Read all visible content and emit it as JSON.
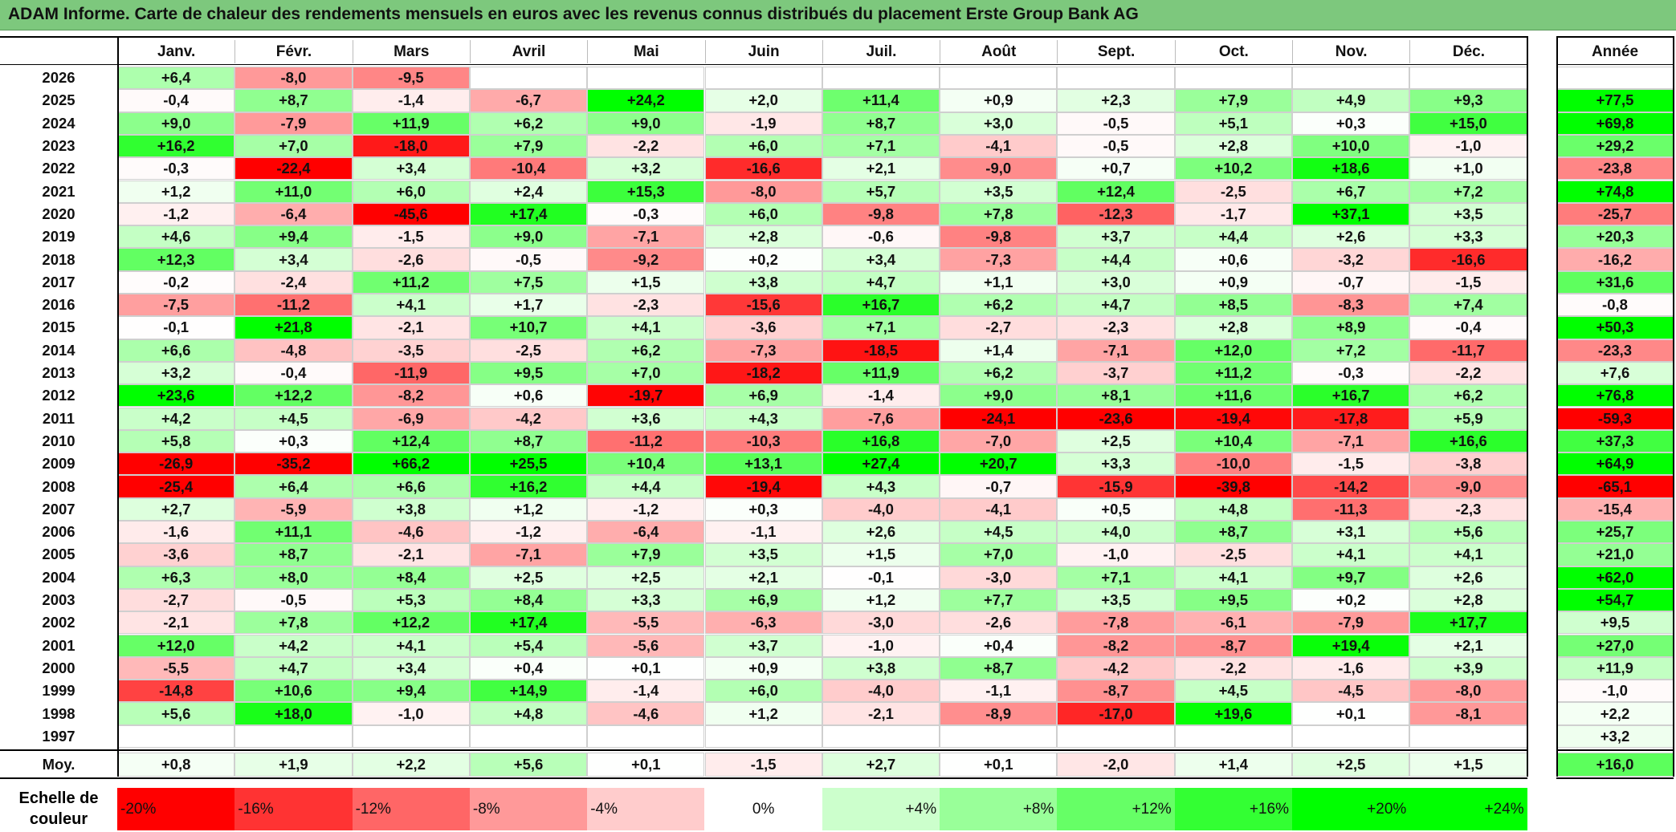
{
  "title": "ADAM Informe. Carte de chaleur des rendements mensuels en euros avec les revenus connus distribués du placement Erste Group Bank AG",
  "chart_data": {
    "type": "heatmap",
    "title": "ADAM Informe. Carte de chaleur des rendements mensuels en euros avec les revenus connus distribués du placement Erste Group Bank AG",
    "columns": [
      "Janv.",
      "Févr.",
      "Mars",
      "Avril",
      "Mai",
      "Juin",
      "Juil.",
      "Août",
      "Sept.",
      "Oct.",
      "Nov.",
      "Déc."
    ],
    "year_column_label": "Année",
    "rows": [
      {
        "year": "2026",
        "months": [
          "+6,4",
          "-8,0",
          "-9,5",
          "",
          "",
          "",
          "",
          "",
          "",
          "",
          "",
          ""
        ],
        "annual": ""
      },
      {
        "year": "2025",
        "months": [
          "-0,4",
          "+8,7",
          "-1,4",
          "-6,7",
          "+24,2",
          "+2,0",
          "+11,4",
          "+0,9",
          "+2,3",
          "+7,9",
          "+4,9",
          "+9,3"
        ],
        "annual": "+77,5"
      },
      {
        "year": "2024",
        "months": [
          "+9,0",
          "-7,9",
          "+11,9",
          "+6,2",
          "+9,0",
          "-1,9",
          "+8,7",
          "+3,0",
          "-0,5",
          "+5,1",
          "+0,3",
          "+15,0"
        ],
        "annual": "+69,8"
      },
      {
        "year": "2023",
        "months": [
          "+16,2",
          "+7,0",
          "-18,0",
          "+7,9",
          "-2,2",
          "+6,0",
          "+7,1",
          "-4,1",
          "-0,5",
          "+2,8",
          "+10,0",
          "-1,0"
        ],
        "annual": "+29,2"
      },
      {
        "year": "2022",
        "months": [
          "-0,3",
          "-22,4",
          "+3,4",
          "-10,4",
          "+3,2",
          "-16,6",
          "+2,1",
          "-9,0",
          "+0,7",
          "+10,2",
          "+18,6",
          "+1,0"
        ],
        "annual": "-23,8"
      },
      {
        "year": "2021",
        "months": [
          "+1,2",
          "+11,0",
          "+6,0",
          "+2,4",
          "+15,3",
          "-8,0",
          "+5,7",
          "+3,5",
          "+12,4",
          "-2,5",
          "+6,7",
          "+7,2"
        ],
        "annual": "+74,8"
      },
      {
        "year": "2020",
        "months": [
          "-1,2",
          "-6,4",
          "-45,6",
          "+17,4",
          "-0,3",
          "+6,0",
          "-9,8",
          "+7,8",
          "-12,3",
          "-1,7",
          "+37,1",
          "+3,5"
        ],
        "annual": "-25,7"
      },
      {
        "year": "2019",
        "months": [
          "+4,6",
          "+9,4",
          "-1,5",
          "+9,0",
          "-7,1",
          "+2,8",
          "-0,6",
          "-9,8",
          "+3,7",
          "+4,4",
          "+2,6",
          "+3,3"
        ],
        "annual": "+20,3"
      },
      {
        "year": "2018",
        "months": [
          "+12,3",
          "+3,4",
          "-2,6",
          "-0,5",
          "-9,2",
          "+0,2",
          "+3,4",
          "-7,3",
          "+4,4",
          "+0,6",
          "-3,2",
          "-16,6"
        ],
        "annual": "-16,2"
      },
      {
        "year": "2017",
        "months": [
          "-0,2",
          "-2,4",
          "+11,2",
          "+7,5",
          "+1,5",
          "+3,8",
          "+4,7",
          "+1,1",
          "+3,0",
          "+0,9",
          "-0,7",
          "-1,5"
        ],
        "annual": "+31,6"
      },
      {
        "year": "2016",
        "months": [
          "-7,5",
          "-11,2",
          "+4,1",
          "+1,7",
          "-2,3",
          "-15,6",
          "+16,7",
          "+6,2",
          "+4,7",
          "+8,5",
          "-8,3",
          "+7,4"
        ],
        "annual": "-0,8"
      },
      {
        "year": "2015",
        "months": [
          "-0,1",
          "+21,8",
          "-2,1",
          "+10,7",
          "+4,1",
          "-3,6",
          "+7,1",
          "-2,7",
          "-2,3",
          "+2,8",
          "+8,9",
          "-0,4"
        ],
        "annual": "+50,3"
      },
      {
        "year": "2014",
        "months": [
          "+6,6",
          "-4,8",
          "-3,5",
          "-2,5",
          "+6,2",
          "-7,3",
          "-18,5",
          "+1,4",
          "-7,1",
          "+12,0",
          "+7,2",
          "-11,7"
        ],
        "annual": "-23,3"
      },
      {
        "year": "2013",
        "months": [
          "+3,2",
          "-0,4",
          "-11,9",
          "+9,5",
          "+7,0",
          "-18,2",
          "+11,9",
          "+6,2",
          "-3,7",
          "+11,2",
          "-0,3",
          "-2,2"
        ],
        "annual": "+7,6"
      },
      {
        "year": "2012",
        "months": [
          "+23,6",
          "+12,2",
          "-8,2",
          "+0,6",
          "-19,7",
          "+6,9",
          "-1,4",
          "+9,0",
          "+8,1",
          "+11,6",
          "+16,7",
          "+6,2"
        ],
        "annual": "+76,8"
      },
      {
        "year": "2011",
        "months": [
          "+4,2",
          "+4,5",
          "-6,9",
          "-4,2",
          "+3,6",
          "+4,3",
          "-7,6",
          "-24,1",
          "-23,6",
          "-19,4",
          "-17,8",
          "+5,9"
        ],
        "annual": "-59,3"
      },
      {
        "year": "2010",
        "months": [
          "+5,8",
          "+0,3",
          "+12,4",
          "+8,7",
          "-11,2",
          "-10,3",
          "+16,8",
          "-7,0",
          "+2,5",
          "+10,4",
          "-7,1",
          "+16,6"
        ],
        "annual": "+37,3"
      },
      {
        "year": "2009",
        "months": [
          "-26,9",
          "-35,2",
          "+66,2",
          "+25,5",
          "+10,4",
          "+13,1",
          "+27,4",
          "+20,7",
          "+3,3",
          "-10,0",
          "-1,5",
          "-3,8"
        ],
        "annual": "+64,9"
      },
      {
        "year": "2008",
        "months": [
          "-25,4",
          "+6,4",
          "+6,6",
          "+16,2",
          "+4,4",
          "-19,4",
          "+4,3",
          "-0,7",
          "-15,9",
          "-39,8",
          "-14,2",
          "-9,0"
        ],
        "annual": "-65,1"
      },
      {
        "year": "2007",
        "months": [
          "+2,7",
          "-5,9",
          "+3,8",
          "+1,2",
          "-1,2",
          "+0,3",
          "-4,0",
          "-4,1",
          "+0,5",
          "+4,8",
          "-11,3",
          "-2,3"
        ],
        "annual": "-15,4"
      },
      {
        "year": "2006",
        "months": [
          "-1,6",
          "+11,1",
          "-4,6",
          "-1,2",
          "-6,4",
          "-1,1",
          "+2,6",
          "+4,5",
          "+4,0",
          "+8,7",
          "+3,1",
          "+5,6"
        ],
        "annual": "+25,7"
      },
      {
        "year": "2005",
        "months": [
          "-3,6",
          "+8,7",
          "-2,1",
          "-7,1",
          "+7,9",
          "+3,5",
          "+1,5",
          "+7,0",
          "-1,0",
          "-2,5",
          "+4,1",
          "+4,1"
        ],
        "annual": "+21,0"
      },
      {
        "year": "2004",
        "months": [
          "+6,3",
          "+8,0",
          "+8,4",
          "+2,5",
          "+2,5",
          "+2,1",
          "-0,1",
          "-3,0",
          "+7,1",
          "+4,1",
          "+9,7",
          "+2,6"
        ],
        "annual": "+62,0"
      },
      {
        "year": "2003",
        "months": [
          "-2,7",
          "-0,5",
          "+5,3",
          "+8,4",
          "+3,3",
          "+6,9",
          "+1,2",
          "+7,7",
          "+3,5",
          "+9,5",
          "+0,2",
          "+2,8"
        ],
        "annual": "+54,7"
      },
      {
        "year": "2002",
        "months": [
          "-2,1",
          "+7,8",
          "+12,2",
          "+17,4",
          "-5,5",
          "-6,3",
          "-3,0",
          "-2,6",
          "-7,8",
          "-6,1",
          "-7,9",
          "+17,7"
        ],
        "annual": "+9,5"
      },
      {
        "year": "2001",
        "months": [
          "+12,0",
          "+4,2",
          "+4,1",
          "+5,4",
          "-5,6",
          "+3,7",
          "-1,0",
          "+0,4",
          "-8,2",
          "-8,7",
          "+19,4",
          "+2,1"
        ],
        "annual": "+27,0"
      },
      {
        "year": "2000",
        "months": [
          "-5,5",
          "+4,7",
          "+3,4",
          "+0,4",
          "+0,1",
          "+0,9",
          "+3,8",
          "+8,7",
          "-4,2",
          "-2,2",
          "-1,6",
          "+3,9"
        ],
        "annual": "+11,9"
      },
      {
        "year": "1999",
        "months": [
          "-14,8",
          "+10,6",
          "+9,4",
          "+14,9",
          "-1,4",
          "+6,0",
          "-4,0",
          "-1,1",
          "-8,7",
          "+4,5",
          "-4,5",
          "-8,0"
        ],
        "annual": "-1,0"
      },
      {
        "year": "1998",
        "months": [
          "+5,6",
          "+18,0",
          "-1,0",
          "+4,8",
          "-4,6",
          "+1,2",
          "-2,1",
          "-8,9",
          "-17,0",
          "+19,6",
          "+0,1",
          "-8,1"
        ],
        "annual": "+2,2"
      },
      {
        "year": "1997",
        "months": [
          "",
          "",
          "",
          "",
          "",
          "",
          "",
          "",
          "",
          "",
          "",
          ""
        ],
        "annual": "+3,2"
      }
    ],
    "average_row": {
      "label": "Moy.",
      "months": [
        "+0,8",
        "+1,9",
        "+2,2",
        "+5,6",
        "+0,1",
        "-1,5",
        "+2,7",
        "+0,1",
        "-2,0",
        "+1,4",
        "+2,5",
        "+1,5"
      ],
      "annual": "+16,0"
    },
    "scale": {
      "label": "Echelle de couleur",
      "steps": [
        "-20%",
        "-16%",
        "-12%",
        "-8%",
        "-4%",
        "0%",
        "+4%",
        "+8%",
        "+12%",
        "+16%",
        "+20%",
        "+24%"
      ],
      "step_values": [
        -20,
        -16,
        -12,
        -8,
        -4,
        0,
        4,
        8,
        12,
        16,
        20,
        24
      ],
      "colors": [
        "#ff0000",
        "#ff3333",
        "#ff6666",
        "#ff9999",
        "#ffcccc",
        "#ffffff",
        "#ccffcc",
        "#99ff99",
        "#66ff66",
        "#33ff33",
        "#00ff00",
        "#00ff00"
      ]
    }
  }
}
